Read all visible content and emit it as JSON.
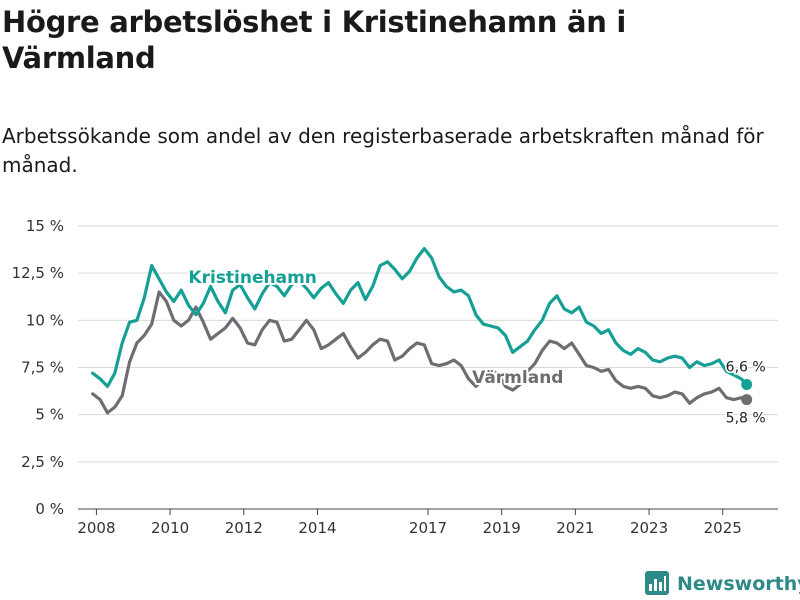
{
  "colors": {
    "kristinehamn": "#16a095",
    "varmland": "#6e6d72",
    "grid": "#d9d9d9",
    "brand": "#2d8a86"
  },
  "icons": {
    "brand_logo": "bar-chart-logo-icon"
  },
  "brand": {
    "name": "Newsworthy"
  },
  "chart_data": {
    "type": "line",
    "title": "Högre arbetslöshet i Kristinehamn än i Värmland",
    "subtitle": "Arbetssökande som andel av den registerbaserade arbetskraften månad för månad.",
    "xlim": [
      2007.5,
      2026.5
    ],
    "ylim": [
      0,
      15
    ],
    "y_ticks": [
      0,
      2.5,
      5,
      7.5,
      10,
      12.5,
      15
    ],
    "y_tick_labels": [
      "0 %",
      "2,5 %",
      "5 %",
      "7,5 %",
      "10 %",
      "12,5 %",
      "15 %"
    ],
    "x_ticks": [
      2008,
      2010,
      2012,
      2014,
      2017,
      2019,
      2021,
      2023,
      2025
    ],
    "x_tick_labels": [
      "2008",
      "2010",
      "2012",
      "2014",
      "2017",
      "2019",
      "2021",
      "2023",
      "2025"
    ],
    "grid": "horizontal",
    "series": [
      {
        "name": "Kristinehamn",
        "label_at": [
          2009.9,
          12.3
        ],
        "end_label": "6,6 %",
        "end_value": 6.6,
        "points": [
          [
            2007.9,
            7.2
          ],
          [
            2008.1,
            6.9
          ],
          [
            2008.3,
            6.5
          ],
          [
            2008.5,
            7.2
          ],
          [
            2008.7,
            8.8
          ],
          [
            2008.9,
            9.9
          ],
          [
            2009.1,
            10.0
          ],
          [
            2009.3,
            11.2
          ],
          [
            2009.5,
            12.9
          ],
          [
            2009.7,
            12.2
          ],
          [
            2009.9,
            11.5
          ],
          [
            2010.1,
            11.0
          ],
          [
            2010.3,
            11.6
          ],
          [
            2010.5,
            10.8
          ],
          [
            2010.7,
            10.3
          ],
          [
            2010.9,
            10.9
          ],
          [
            2011.1,
            11.8
          ],
          [
            2011.3,
            11.0
          ],
          [
            2011.5,
            10.4
          ],
          [
            2011.7,
            11.6
          ],
          [
            2011.9,
            11.9
          ],
          [
            2012.1,
            11.2
          ],
          [
            2012.3,
            10.6
          ],
          [
            2012.5,
            11.4
          ],
          [
            2012.7,
            12.0
          ],
          [
            2012.9,
            11.8
          ],
          [
            2013.1,
            11.3
          ],
          [
            2013.3,
            11.9
          ],
          [
            2013.5,
            12.1
          ],
          [
            2013.7,
            11.7
          ],
          [
            2013.9,
            11.2
          ],
          [
            2014.1,
            11.7
          ],
          [
            2014.3,
            12.0
          ],
          [
            2014.5,
            11.4
          ],
          [
            2014.7,
            10.9
          ],
          [
            2014.9,
            11.6
          ],
          [
            2015.1,
            12.0
          ],
          [
            2015.3,
            11.1
          ],
          [
            2015.5,
            11.8
          ],
          [
            2015.7,
            12.9
          ],
          [
            2015.9,
            13.1
          ],
          [
            2016.1,
            12.7
          ],
          [
            2016.3,
            12.2
          ],
          [
            2016.5,
            12.6
          ],
          [
            2016.7,
            13.3
          ],
          [
            2016.9,
            13.8
          ],
          [
            2017.1,
            13.3
          ],
          [
            2017.3,
            12.3
          ],
          [
            2017.5,
            11.8
          ],
          [
            2017.7,
            11.5
          ],
          [
            2017.9,
            11.6
          ],
          [
            2018.1,
            11.3
          ],
          [
            2018.3,
            10.3
          ],
          [
            2018.5,
            9.8
          ],
          [
            2018.7,
            9.7
          ],
          [
            2018.9,
            9.6
          ],
          [
            2019.1,
            9.2
          ],
          [
            2019.3,
            8.3
          ],
          [
            2019.5,
            8.6
          ],
          [
            2019.7,
            8.9
          ],
          [
            2019.9,
            9.5
          ],
          [
            2020.1,
            10.0
          ],
          [
            2020.3,
            10.9
          ],
          [
            2020.5,
            11.3
          ],
          [
            2020.7,
            10.6
          ],
          [
            2020.9,
            10.4
          ],
          [
            2021.1,
            10.7
          ],
          [
            2021.3,
            9.9
          ],
          [
            2021.5,
            9.7
          ],
          [
            2021.7,
            9.3
          ],
          [
            2021.9,
            9.5
          ],
          [
            2022.1,
            8.8
          ],
          [
            2022.3,
            8.4
          ],
          [
            2022.5,
            8.2
          ],
          [
            2022.7,
            8.5
          ],
          [
            2022.9,
            8.3
          ],
          [
            2023.1,
            7.9
          ],
          [
            2023.3,
            7.8
          ],
          [
            2023.5,
            8.0
          ],
          [
            2023.7,
            8.1
          ],
          [
            2023.9,
            8.0
          ],
          [
            2024.1,
            7.5
          ],
          [
            2024.3,
            7.8
          ],
          [
            2024.5,
            7.6
          ],
          [
            2024.7,
            7.7
          ],
          [
            2024.9,
            7.9
          ],
          [
            2025.1,
            7.3
          ],
          [
            2025.3,
            7.1
          ],
          [
            2025.5,
            6.9
          ],
          [
            2025.65,
            6.6
          ]
        ]
      },
      {
        "name": "Värmland",
        "label_at": [
          2017.6,
          7.0
        ],
        "end_label": "5,8 %",
        "end_value": 5.8,
        "points": [
          [
            2007.9,
            6.1
          ],
          [
            2008.1,
            5.8
          ],
          [
            2008.3,
            5.1
          ],
          [
            2008.5,
            5.4
          ],
          [
            2008.7,
            6.0
          ],
          [
            2008.9,
            7.8
          ],
          [
            2009.1,
            8.8
          ],
          [
            2009.3,
            9.2
          ],
          [
            2009.5,
            9.8
          ],
          [
            2009.7,
            11.5
          ],
          [
            2009.9,
            11.0
          ],
          [
            2010.1,
            10.0
          ],
          [
            2010.3,
            9.7
          ],
          [
            2010.5,
            10.0
          ],
          [
            2010.7,
            10.7
          ],
          [
            2010.9,
            9.9
          ],
          [
            2011.1,
            9.0
          ],
          [
            2011.3,
            9.3
          ],
          [
            2011.5,
            9.6
          ],
          [
            2011.7,
            10.1
          ],
          [
            2011.9,
            9.6
          ],
          [
            2012.1,
            8.8
          ],
          [
            2012.3,
            8.7
          ],
          [
            2012.5,
            9.5
          ],
          [
            2012.7,
            10.0
          ],
          [
            2012.9,
            9.9
          ],
          [
            2013.1,
            8.9
          ],
          [
            2013.3,
            9.0
          ],
          [
            2013.5,
            9.5
          ],
          [
            2013.7,
            10.0
          ],
          [
            2013.9,
            9.5
          ],
          [
            2014.1,
            8.5
          ],
          [
            2014.3,
            8.7
          ],
          [
            2014.5,
            9.0
          ],
          [
            2014.7,
            9.3
          ],
          [
            2014.9,
            8.6
          ],
          [
            2015.1,
            8.0
          ],
          [
            2015.3,
            8.3
          ],
          [
            2015.5,
            8.7
          ],
          [
            2015.7,
            9.0
          ],
          [
            2015.9,
            8.9
          ],
          [
            2016.1,
            7.9
          ],
          [
            2016.3,
            8.1
          ],
          [
            2016.5,
            8.5
          ],
          [
            2016.7,
            8.8
          ],
          [
            2016.9,
            8.7
          ],
          [
            2017.1,
            7.7
          ],
          [
            2017.3,
            7.6
          ],
          [
            2017.5,
            7.7
          ],
          [
            2017.7,
            7.9
          ],
          [
            2017.9,
            7.6
          ],
          [
            2018.1,
            6.9
          ],
          [
            2018.3,
            6.5
          ],
          [
            2018.5,
            6.9
          ],
          [
            2018.7,
            7.3
          ],
          [
            2018.9,
            7.2
          ],
          [
            2019.1,
            6.5
          ],
          [
            2019.3,
            6.3
          ],
          [
            2019.5,
            6.6
          ],
          [
            2019.7,
            7.3
          ],
          [
            2019.9,
            7.7
          ],
          [
            2020.1,
            8.4
          ],
          [
            2020.3,
            8.9
          ],
          [
            2020.5,
            8.8
          ],
          [
            2020.7,
            8.5
          ],
          [
            2020.9,
            8.8
          ],
          [
            2021.1,
            8.2
          ],
          [
            2021.3,
            7.6
          ],
          [
            2021.5,
            7.5
          ],
          [
            2021.7,
            7.3
          ],
          [
            2021.9,
            7.4
          ],
          [
            2022.1,
            6.8
          ],
          [
            2022.3,
            6.5
          ],
          [
            2022.5,
            6.4
          ],
          [
            2022.7,
            6.5
          ],
          [
            2022.9,
            6.4
          ],
          [
            2023.1,
            6.0
          ],
          [
            2023.3,
            5.9
          ],
          [
            2023.5,
            6.0
          ],
          [
            2023.7,
            6.2
          ],
          [
            2023.9,
            6.1
          ],
          [
            2024.1,
            5.6
          ],
          [
            2024.3,
            5.9
          ],
          [
            2024.5,
            6.1
          ],
          [
            2024.7,
            6.2
          ],
          [
            2024.9,
            6.4
          ],
          [
            2025.1,
            5.9
          ],
          [
            2025.3,
            5.8
          ],
          [
            2025.5,
            5.9
          ],
          [
            2025.65,
            5.8
          ]
        ]
      }
    ]
  }
}
